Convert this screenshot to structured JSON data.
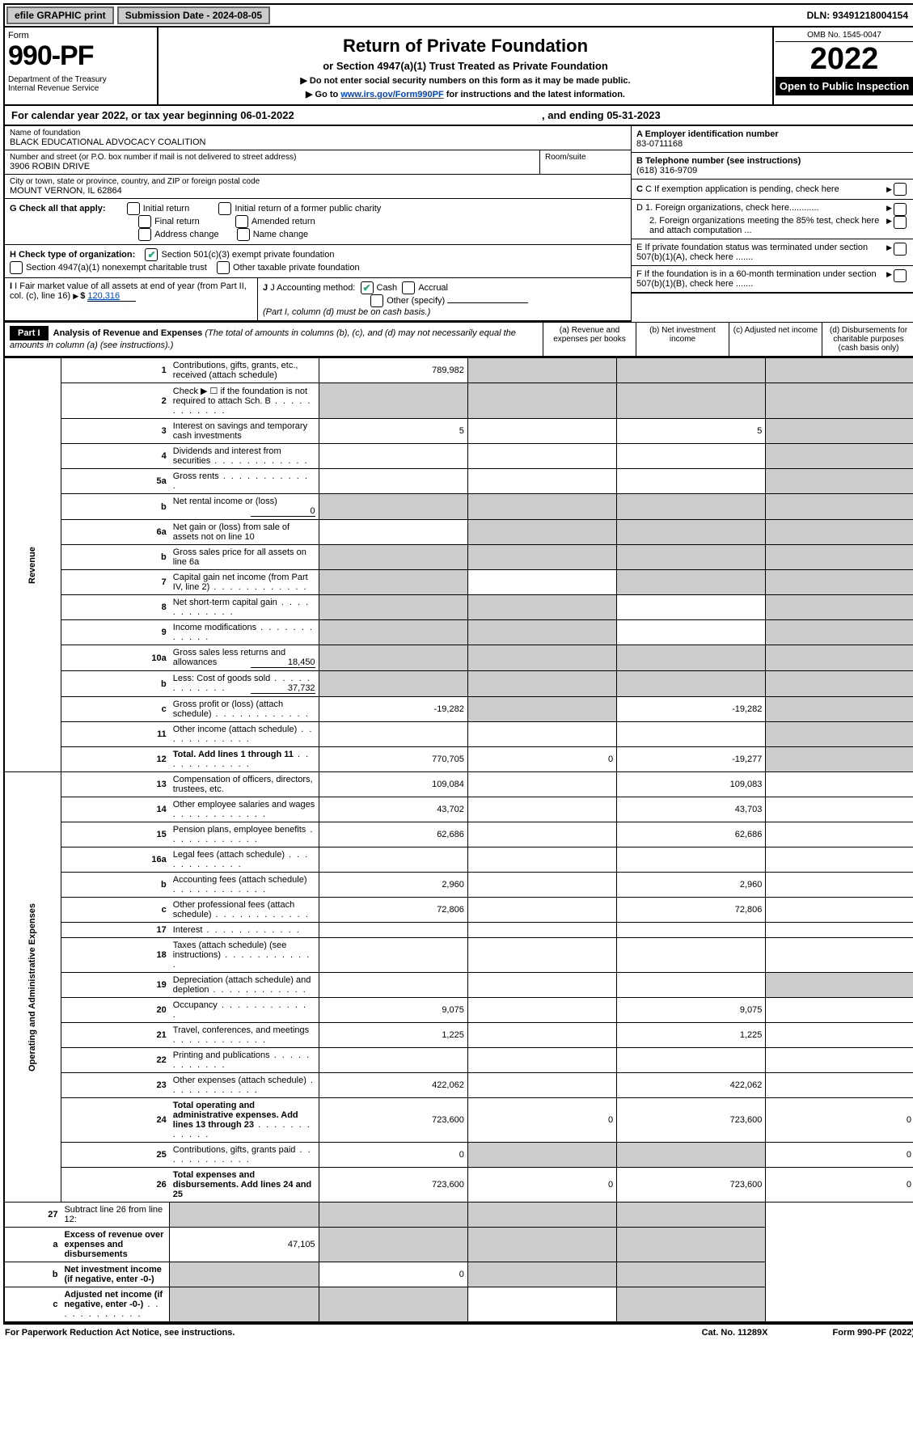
{
  "topbar": {
    "efile": "efile GRAPHIC print",
    "submission": "Submission Date - 2024-08-05",
    "dln": "DLN: 93491218004154"
  },
  "header": {
    "form_label": "Form",
    "form_number": "990-PF",
    "dept": "Department of the Treasury\nInternal Revenue Service",
    "title": "Return of Private Foundation",
    "subtitle": "or Section 4947(a)(1) Trust Treated as Private Foundation",
    "note1": "▶ Do not enter social security numbers on this form as it may be made public.",
    "note2_pre": "▶ Go to ",
    "note2_link": "www.irs.gov/Form990PF",
    "note2_post": " for instructions and the latest information.",
    "omb": "OMB No. 1545-0047",
    "year": "2022",
    "open": "Open to Public Inspection"
  },
  "calyear": {
    "text": "For calendar year 2022, or tax year beginning 06-01-2022",
    "mid": ", and ending 05-31-2023"
  },
  "org": {
    "name_label": "Name of foundation",
    "name": "BLACK EDUCATIONAL ADVOCACY COALITION",
    "addr_label": "Number and street (or P.O. box number if mail is not delivered to street address)",
    "addr": "3906 ROBIN DRIVE",
    "room_label": "Room/suite",
    "city_label": "City or town, state or province, country, and ZIP or foreign postal code",
    "city": "MOUNT VERNON, IL  62864",
    "a_label": "A Employer identification number",
    "a_val": "83-0711168",
    "b_label": "B Telephone number (see instructions)",
    "b_val": "(618) 316-9709",
    "c_label": "C If exemption application is pending, check here",
    "d1": "D 1. Foreign organizations, check here............",
    "d2": "2. Foreign organizations meeting the 85% test, check here and attach computation ...",
    "e": "E  If private foundation status was terminated under section 507(b)(1)(A), check here .......",
    "f": "F  If the foundation is in a 60-month termination under section 507(b)(1)(B), check here .......",
    "g_label": "G Check all that apply:",
    "g_opts": [
      "Initial return",
      "Final return",
      "Address change",
      "Initial return of a former public charity",
      "Amended return",
      "Name change"
    ],
    "h_label": "H Check type of organization:",
    "h_opts": [
      "Section 501(c)(3) exempt private foundation",
      "Section 4947(a)(1) nonexempt charitable trust",
      "Other taxable private foundation"
    ],
    "i_label": "I Fair market value of all assets at end of year (from Part II, col. (c), line 16)",
    "i_val": "120,316",
    "j_label": "J Accounting method:",
    "j_opts": [
      "Cash",
      "Accrual",
      "Other (specify)"
    ],
    "j_note": "(Part I, column (d) must be on cash basis.)"
  },
  "part1": {
    "label": "Part I",
    "title": "Analysis of Revenue and Expenses",
    "title_note": " (The total of amounts in columns (b), (c), and (d) may not necessarily equal the amounts in column (a) (see instructions).)",
    "cols": {
      "a": "(a)   Revenue and expenses per books",
      "b": "(b)   Net investment income",
      "c": "(c)   Adjusted net income",
      "d": "(d)   Disbursements for charitable purposes (cash basis only)"
    }
  },
  "sections": {
    "revenue": "Revenue",
    "expenses": "Operating and Administrative Expenses"
  },
  "rows": [
    {
      "n": "1",
      "d": "Contributions, gifts, grants, etc., received (attach schedule)",
      "a": "789,982",
      "b": "shade",
      "c": "shade",
      "dd": "shade"
    },
    {
      "n": "2",
      "d": "Check ▶ ☐ if the foundation is not required to attach Sch. B",
      "a": "shade",
      "b": "shade",
      "c": "shade",
      "dd": "shade",
      "dots": true
    },
    {
      "n": "3",
      "d": "Interest on savings and temporary cash investments",
      "a": "5",
      "b": "",
      "c": "5",
      "dd": "shade"
    },
    {
      "n": "4",
      "d": "Dividends and interest from securities",
      "a": "",
      "b": "",
      "c": "",
      "dd": "shade",
      "dots": true
    },
    {
      "n": "5a",
      "d": "Gross rents",
      "a": "",
      "b": "",
      "c": "",
      "dd": "shade",
      "dots": true
    },
    {
      "n": "b",
      "d": "Net rental income or (loss)",
      "inline": "0",
      "a": "shade",
      "b": "shade",
      "c": "shade",
      "dd": "shade"
    },
    {
      "n": "6a",
      "d": "Net gain or (loss) from sale of assets not on line 10",
      "a": "",
      "b": "shade",
      "c": "shade",
      "dd": "shade"
    },
    {
      "n": "b",
      "d": "Gross sales price for all assets on line 6a",
      "a": "shade",
      "b": "shade",
      "c": "shade",
      "dd": "shade"
    },
    {
      "n": "7",
      "d": "Capital gain net income (from Part IV, line 2)",
      "a": "shade",
      "b": "",
      "c": "shade",
      "dd": "shade",
      "dots": true
    },
    {
      "n": "8",
      "d": "Net short-term capital gain",
      "a": "shade",
      "b": "shade",
      "c": "",
      "dd": "shade",
      "dots": true
    },
    {
      "n": "9",
      "d": "Income modifications",
      "a": "shade",
      "b": "shade",
      "c": "",
      "dd": "shade",
      "dots": true
    },
    {
      "n": "10a",
      "d": "Gross sales less returns and allowances",
      "inline": "18,450",
      "a": "shade",
      "b": "shade",
      "c": "shade",
      "dd": "shade"
    },
    {
      "n": "b",
      "d": "Less: Cost of goods sold",
      "inline": "37,732",
      "a": "shade",
      "b": "shade",
      "c": "shade",
      "dd": "shade",
      "dots": true
    },
    {
      "n": "c",
      "d": "Gross profit or (loss) (attach schedule)",
      "a": "-19,282",
      "b": "shade",
      "c": "-19,282",
      "dd": "shade",
      "dots": true
    },
    {
      "n": "11",
      "d": "Other income (attach schedule)",
      "a": "",
      "b": "",
      "c": "",
      "dd": "shade",
      "dots": true
    },
    {
      "n": "12",
      "d": "Total. Add lines 1 through 11",
      "bold": true,
      "a": "770,705",
      "b": "0",
      "c": "-19,277",
      "dd": "shade",
      "dots": true
    }
  ],
  "exp_rows": [
    {
      "n": "13",
      "d": "Compensation of officers, directors, trustees, etc.",
      "a": "109,084",
      "b": "",
      "c": "109,083",
      "dd": ""
    },
    {
      "n": "14",
      "d": "Other employee salaries and wages",
      "a": "43,702",
      "b": "",
      "c": "43,703",
      "dd": "",
      "dots": true
    },
    {
      "n": "15",
      "d": "Pension plans, employee benefits",
      "a": "62,686",
      "b": "",
      "c": "62,686",
      "dd": "",
      "dots": true
    },
    {
      "n": "16a",
      "d": "Legal fees (attach schedule)",
      "a": "",
      "b": "",
      "c": "",
      "dd": "",
      "dots": true
    },
    {
      "n": "b",
      "d": "Accounting fees (attach schedule)",
      "a": "2,960",
      "b": "",
      "c": "2,960",
      "dd": "",
      "dots": true
    },
    {
      "n": "c",
      "d": "Other professional fees (attach schedule)",
      "a": "72,806",
      "b": "",
      "c": "72,806",
      "dd": "",
      "dots": true
    },
    {
      "n": "17",
      "d": "Interest",
      "a": "",
      "b": "",
      "c": "",
      "dd": "",
      "dots": true
    },
    {
      "n": "18",
      "d": "Taxes (attach schedule) (see instructions)",
      "a": "",
      "b": "",
      "c": "",
      "dd": "",
      "dots": true
    },
    {
      "n": "19",
      "d": "Depreciation (attach schedule) and depletion",
      "a": "",
      "b": "",
      "c": "",
      "dd": "shade",
      "dots": true
    },
    {
      "n": "20",
      "d": "Occupancy",
      "a": "9,075",
      "b": "",
      "c": "9,075",
      "dd": "",
      "dots": true
    },
    {
      "n": "21",
      "d": "Travel, conferences, and meetings",
      "a": "1,225",
      "b": "",
      "c": "1,225",
      "dd": "",
      "dots": true
    },
    {
      "n": "22",
      "d": "Printing and publications",
      "a": "",
      "b": "",
      "c": "",
      "dd": "",
      "dots": true
    },
    {
      "n": "23",
      "d": "Other expenses (attach schedule)",
      "a": "422,062",
      "b": "",
      "c": "422,062",
      "dd": "",
      "dots": true
    },
    {
      "n": "24",
      "d": "Total operating and administrative expenses. Add lines 13 through 23",
      "bold": true,
      "a": "723,600",
      "b": "0",
      "c": "723,600",
      "dd": "0",
      "dots": true
    },
    {
      "n": "25",
      "d": "Contributions, gifts, grants paid",
      "a": "0",
      "b": "shade",
      "c": "shade",
      "dd": "0",
      "dots": true
    },
    {
      "n": "26",
      "d": "Total expenses and disbursements. Add lines 24 and 25",
      "bold": true,
      "a": "723,600",
      "b": "0",
      "c": "723,600",
      "dd": "0"
    }
  ],
  "final_rows": [
    {
      "n": "27",
      "d": "Subtract line 26 from line 12:",
      "a": "shade",
      "b": "shade",
      "c": "shade",
      "dd": "shade"
    },
    {
      "n": "a",
      "d": "Excess of revenue over expenses and disbursements",
      "bold": true,
      "a": "47,105",
      "b": "shade",
      "c": "shade",
      "dd": "shade"
    },
    {
      "n": "b",
      "d": "Net investment income (if negative, enter -0-)",
      "bold": true,
      "a": "shade",
      "b": "0",
      "c": "shade",
      "dd": "shade"
    },
    {
      "n": "c",
      "d": "Adjusted net income (if negative, enter -0-)",
      "bold": true,
      "a": "shade",
      "b": "shade",
      "c": "",
      "dd": "shade",
      "dots": true
    }
  ],
  "footer": {
    "left": "For Paperwork Reduction Act Notice, see instructions.",
    "mid": "Cat. No. 11289X",
    "right": "Form 990-PF (2022)"
  }
}
